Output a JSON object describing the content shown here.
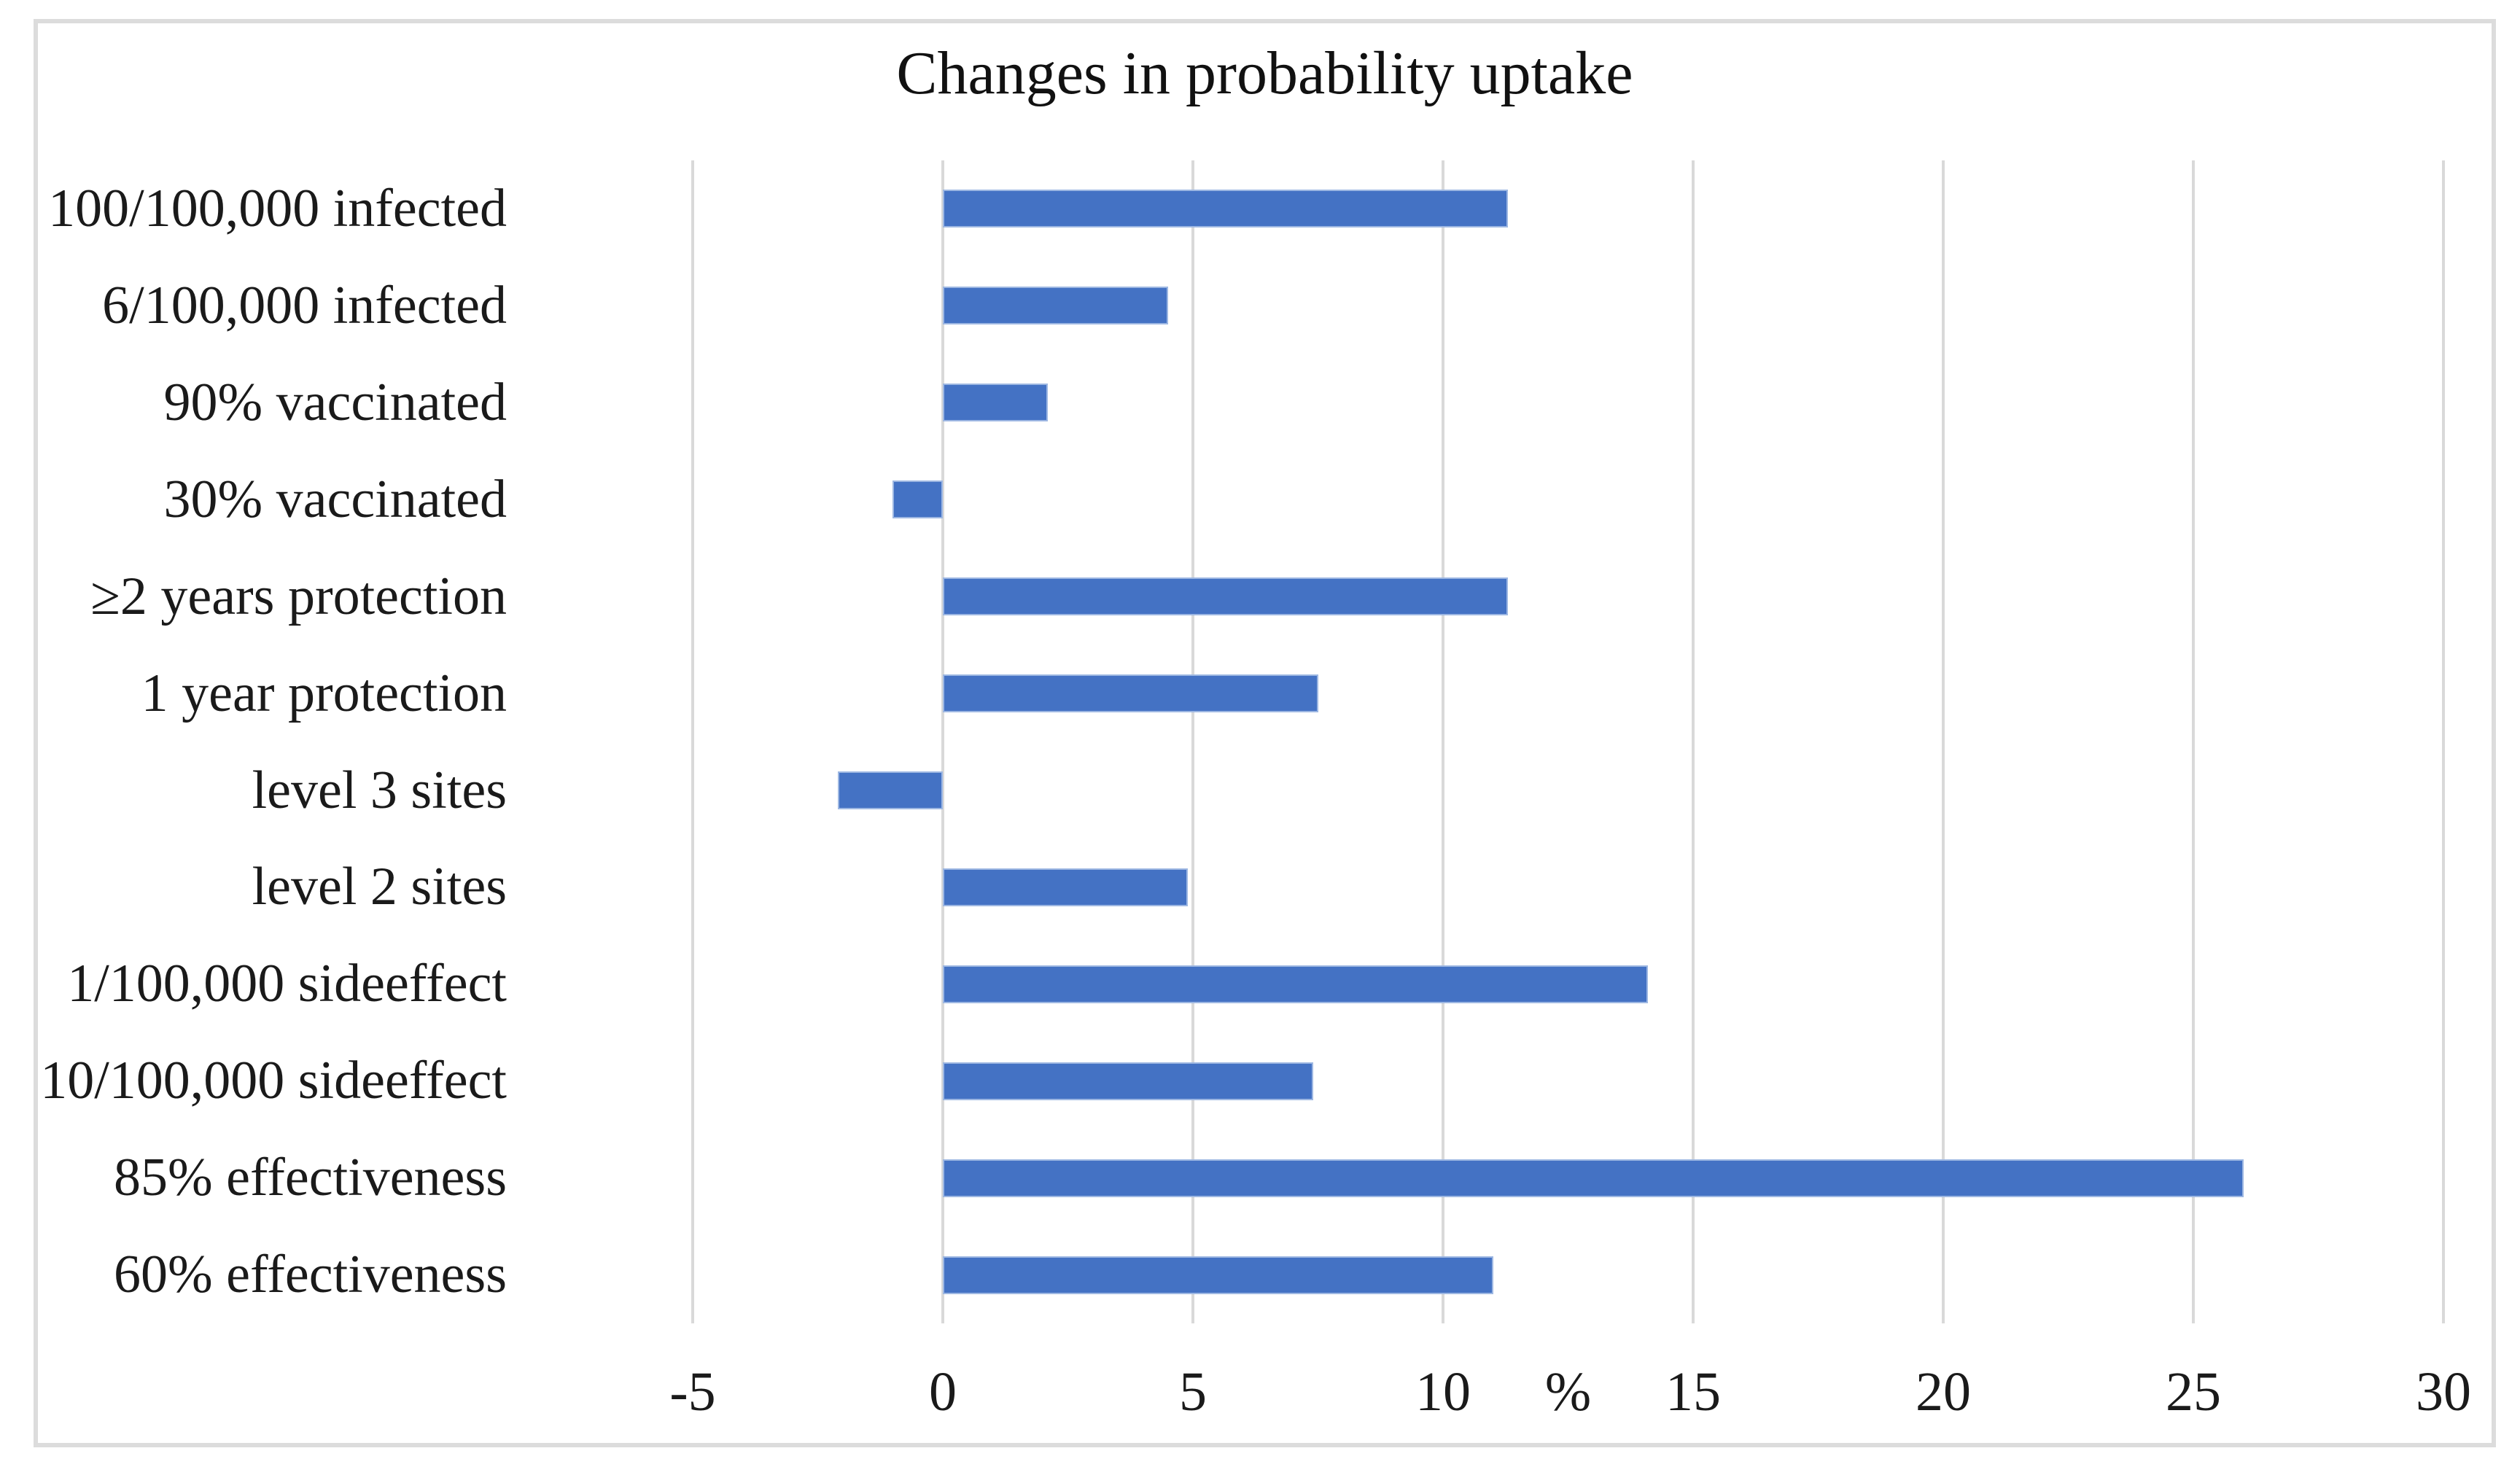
{
  "chart_data": {
    "type": "bar",
    "orientation": "horizontal",
    "title": "Changes in probability uptake",
    "categories": [
      "100/100,000 infected",
      "6/100,000 infected",
      "90% vaccinated",
      "30% vaccinated",
      "≥2 years protection",
      "1 year protection",
      "level 3 sites",
      "level 2 sites",
      "1/100,000 sideeffect",
      "10/100,000 sideeffect",
      "85% effectiveness",
      "60% effectiveness"
    ],
    "values": [
      11.3,
      4.5,
      2.1,
      -1.0,
      11.3,
      7.5,
      -2.1,
      4.9,
      14.1,
      7.4,
      26.0,
      11.0
    ],
    "xlabel": "%",
    "xlim": [
      -5,
      30
    ],
    "xticks": [
      -5,
      0,
      5,
      10,
      15,
      20,
      25,
      30
    ],
    "grid": "vertical-only",
    "legend": "none",
    "bar_color": "#4472C4",
    "bar_border_color": "#9DB7E2",
    "gridline_color": "#D9D9D9",
    "frame_border_color": "#DCDCDC",
    "text_color": "#1A1A1A",
    "title_color": "#111111"
  }
}
